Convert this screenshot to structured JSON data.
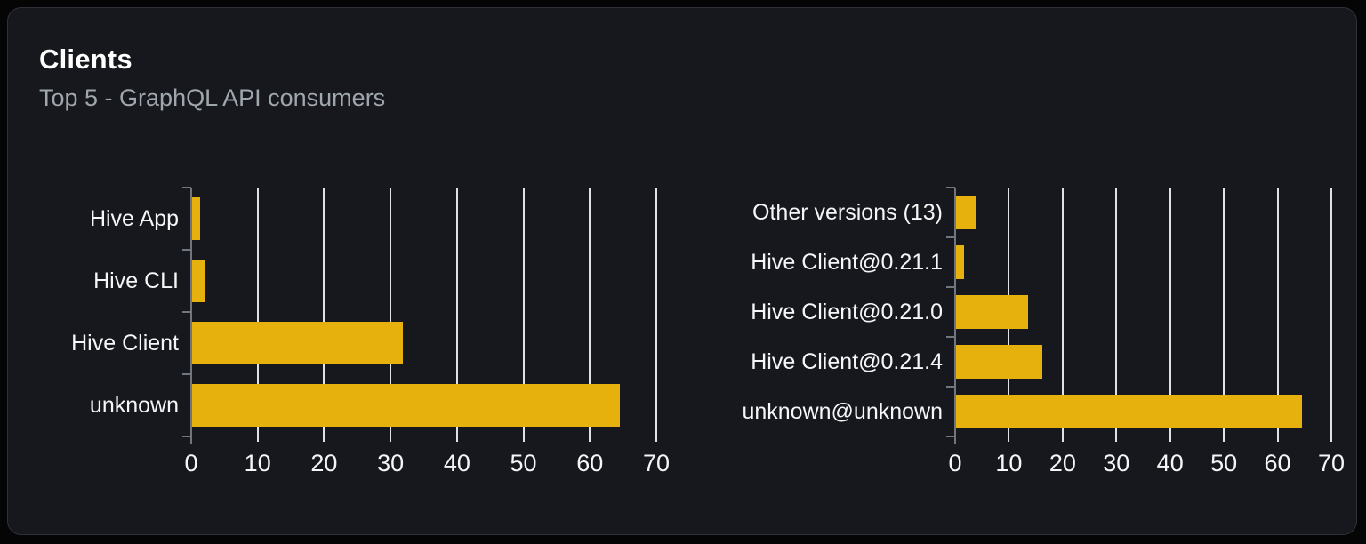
{
  "card": {
    "title": "Clients",
    "subtitle": "Top 5 - GraphQL API consumers"
  },
  "colors": {
    "page_background": "#050506",
    "card_background": "#16181d",
    "card_border": "#2e3138",
    "bar": "#e7b10d",
    "grid_line": "#dde2e9",
    "axis_line": "#71767e",
    "label_text": "#f5f6f7",
    "subtitle_text": "#a0a6ad"
  },
  "chart_data": [
    {
      "type": "bar",
      "orientation": "horizontal",
      "name": "clients",
      "categories": [
        "Hive App",
        "Hive CLI",
        "Hive Client",
        "unknown"
      ],
      "values": [
        1.4,
        2.0,
        31.9,
        64.5
      ],
      "xlim": [
        0,
        70
      ],
      "xticks": [
        0,
        10,
        20,
        30,
        40,
        50,
        60,
        70
      ],
      "grid": true,
      "legend": false,
      "bar_color": "#e7b10d"
    },
    {
      "type": "bar",
      "orientation": "horizontal",
      "name": "client-versions",
      "categories": [
        "Other versions (13)",
        "Hive Client@0.21.1",
        "Hive Client@0.21.0",
        "Hive Client@0.21.4",
        "unknown@unknown"
      ],
      "values": [
        3.9,
        1.7,
        13.6,
        16.2,
        64.6
      ],
      "xlim": [
        0,
        70
      ],
      "xticks": [
        0,
        10,
        20,
        30,
        40,
        50,
        60,
        70
      ],
      "grid": true,
      "legend": false,
      "bar_color": "#e7b10d"
    }
  ]
}
